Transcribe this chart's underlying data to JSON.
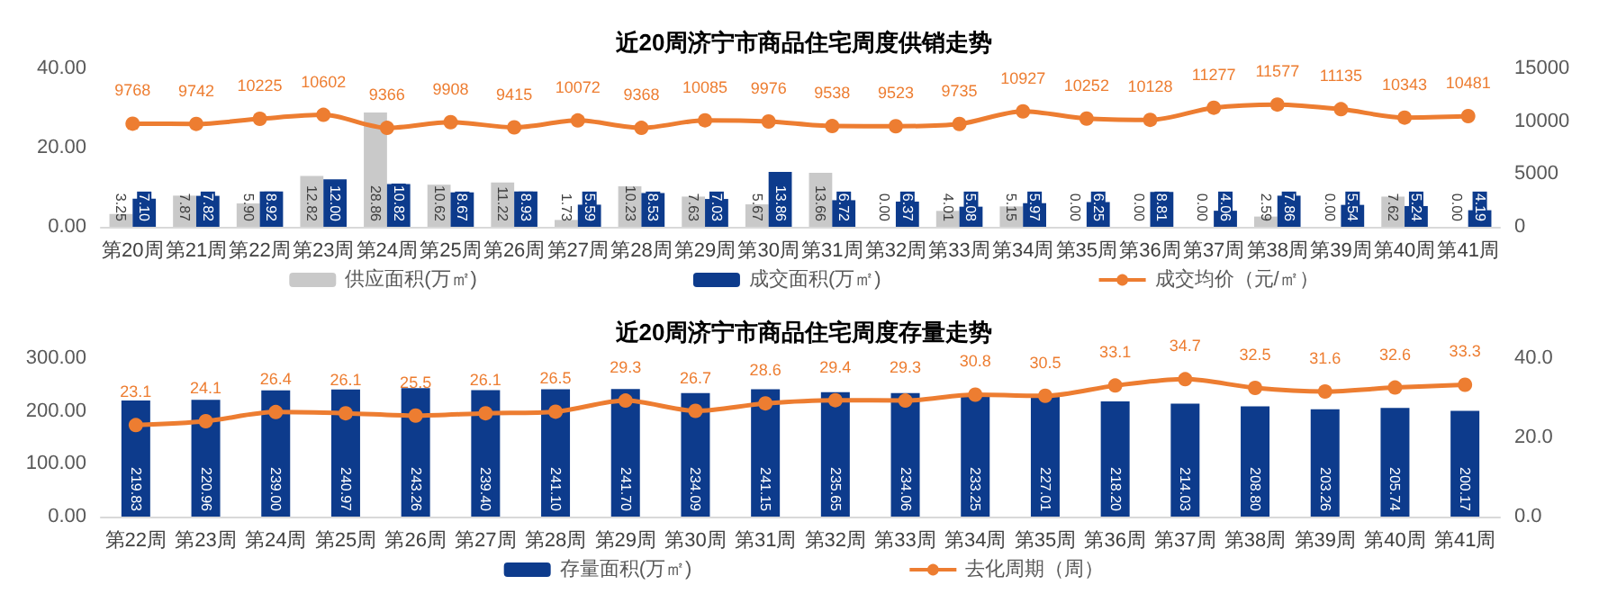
{
  "chart_data": [
    {
      "type": "bar",
      "title": "近20周济宁市商品住宅周度供销走势",
      "categories": [
        "第20周",
        "第21周",
        "第22周",
        "第23周",
        "第24周",
        "第25周",
        "第26周",
        "第27周",
        "第28周",
        "第29周",
        "第30周",
        "第31周",
        "第32周",
        "第33周",
        "第34周",
        "第35周",
        "第36周",
        "第37周",
        "第38周",
        "第39周",
        "第40周",
        "第41周"
      ],
      "series": [
        {
          "name": "供应面积(万㎡)",
          "color": "#c9c9c9",
          "values": [
            3.25,
            7.87,
            5.9,
            12.82,
            28.86,
            10.62,
            11.22,
            1.73,
            10.23,
            7.63,
            5.67,
            13.66,
            0,
            4.01,
            5.15,
            0,
            0,
            0,
            2.59,
            0,
            7.62,
            0
          ],
          "value_labels": [
            "3.25",
            "7.87",
            "5.90",
            "12.82",
            "28.86",
            "10.62",
            "11.22",
            "1.73",
            "10.23",
            "7.63",
            "5.67",
            "13.66",
            "0.00",
            "4.01",
            "5.15",
            "0.00",
            "0.00",
            "0.00",
            "2.59",
            "0.00",
            "7.62",
            "0.00"
          ]
        },
        {
          "name": "成交面积(万㎡)",
          "color": "#0d3b8c",
          "values": [
            7.1,
            7.82,
            8.92,
            12,
            10.82,
            8.67,
            8.93,
            5.59,
            8.53,
            7.03,
            13.86,
            6.72,
            6.37,
            5.08,
            5.97,
            6.25,
            8.81,
            4.06,
            7.86,
            5.54,
            5.24,
            4.19
          ],
          "value_labels": [
            "7.10",
            "7.82",
            "8.92",
            "12.00",
            "10.82",
            "8.67",
            "8.93",
            "5.59",
            "8.53",
            "7.03",
            "13.86",
            "6.72",
            "6.37",
            "5.08",
            "5.97",
            "6.25",
            "8.81",
            "4.06",
            "7.86",
            "5.54",
            "5.24",
            "4.19"
          ]
        },
        {
          "name": "成交均价（元/㎡）",
          "type": "line",
          "axis": "y2",
          "color": "#ed7d31",
          "values": [
            9768,
            9742,
            10225,
            10602,
            9366,
            9908,
            9415,
            10072,
            9368,
            10085,
            9976,
            9538,
            9523,
            9735,
            10927,
            10252,
            10128,
            11277,
            11577,
            11135,
            10343,
            10481
          ]
        }
      ],
      "ylim": [
        0,
        40
      ],
      "yticks": [
        {
          "value": 0,
          "label": "0.00"
        },
        {
          "value": 20,
          "label": "20.00"
        },
        {
          "value": 40,
          "label": "40.00"
        }
      ],
      "y2lim": [
        0,
        15000
      ],
      "y2ticks": [
        0,
        5000,
        10000,
        15000
      ],
      "data_labels": true,
      "marker": "circle",
      "legend": "bottom"
    },
    {
      "type": "bar",
      "title": "近20周济宁市商品住宅周度存量走势",
      "categories": [
        "第22周",
        "第23周",
        "第24周",
        "第25周",
        "第26周",
        "第27周",
        "第28周",
        "第29周",
        "第30周",
        "第31周",
        "第32周",
        "第33周",
        "第34周",
        "第35周",
        "第36周",
        "第37周",
        "第38周",
        "第39周",
        "第40周",
        "第41周"
      ],
      "series": [
        {
          "name": "存量面积(万㎡)",
          "color": "#0d3b8c",
          "values": [
            219.83,
            220.96,
            239,
            240.97,
            243.26,
            239.4,
            241.1,
            241.7,
            234.09,
            241.15,
            235.65,
            234.06,
            233.25,
            227.01,
            218.2,
            214.03,
            208.8,
            203.26,
            205.74,
            200.17
          ],
          "value_labels": [
            "219.83",
            "220.96",
            "239.00",
            "240.97",
            "243.26",
            "239.40",
            "241.10",
            "241.70",
            "234.09",
            "241.15",
            "235.65",
            "234.06",
            "233.25",
            "227.01",
            "218.20",
            "214.03",
            "208.80",
            "203.26",
            "205.74",
            "200.17"
          ]
        },
        {
          "name": "去化周期（周）",
          "type": "line",
          "axis": "y2",
          "color": "#ed7d31",
          "values": [
            23.1,
            24.1,
            26.4,
            26.1,
            25.5,
            26.1,
            26.5,
            29.3,
            26.7,
            28.6,
            29.4,
            29.3,
            30.8,
            30.5,
            33.1,
            34.7,
            32.5,
            31.6,
            32.6,
            33.3
          ]
        }
      ],
      "ylim": [
        0,
        300
      ],
      "yticks": [
        {
          "value": 0,
          "label": "0.00"
        },
        {
          "value": 100,
          "label": "100.00"
        },
        {
          "value": 200,
          "label": "200.00"
        },
        {
          "value": 300,
          "label": "300.00"
        }
      ],
      "y2lim": [
        0,
        40
      ],
      "y2ticks": [
        {
          "value": 0,
          "label": "0.0"
        },
        {
          "value": 20,
          "label": "20.0"
        },
        {
          "value": 40,
          "label": "40.0"
        }
      ],
      "data_labels": true,
      "marker": "circle",
      "legend": "bottom"
    }
  ]
}
